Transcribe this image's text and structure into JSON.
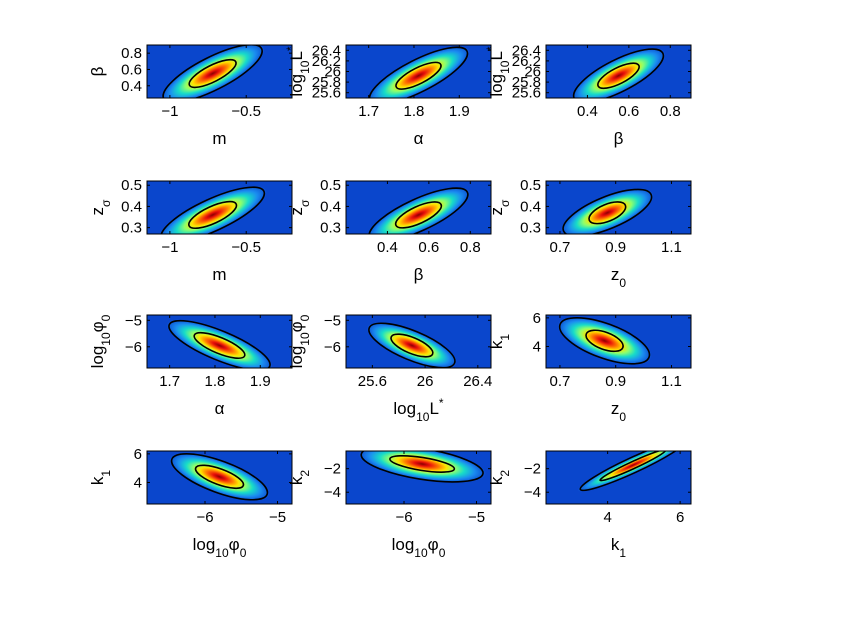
{
  "chart_data": [
    {
      "type": "heatmap",
      "xlabel": "m",
      "ylabel": "β",
      "xlim": [
        -1.15,
        -0.2
      ],
      "ylim": [
        0.25,
        0.9
      ],
      "xticks": [
        -1,
        -0.5
      ],
      "xtick_labels": [
        "−1",
        "−0.5"
      ],
      "yticks": [
        0.4,
        0.6,
        0.8
      ],
      "ytick_labels": [
        "0.4",
        "0.6",
        "0.8"
      ],
      "peak": [
        -0.72,
        0.55
      ],
      "ellipse_1sigma": {
        "rx": 0.17,
        "ry": 0.1,
        "tilt": 0.6
      },
      "ellipse_2sigma": {
        "rx": 0.36,
        "ry": 0.2,
        "tilt": 0.6
      }
    },
    {
      "type": "heatmap",
      "xlabel": "α",
      "ylabel_base": "log",
      "ylabel_sub": "10",
      "ylabel_tail": "L",
      "ylabel_sup": "*",
      "xlim": [
        1.65,
        1.97
      ],
      "ylim": [
        25.5,
        26.5
      ],
      "xticks": [
        1.7,
        1.8,
        1.9
      ],
      "xtick_labels": [
        "1.7",
        "1.8",
        "1.9"
      ],
      "yticks": [
        25.6,
        25.8,
        26,
        26.2,
        26.4
      ],
      "ytick_labels": [
        "25.6",
        "25.8",
        "26",
        "26.2",
        "26.4"
      ],
      "peak": [
        1.81,
        25.92
      ],
      "ellipse_1sigma": {
        "rx": 0.055,
        "ry": 0.15,
        "tilt": 0.6
      },
      "ellipse_2sigma": {
        "rx": 0.12,
        "ry": 0.3,
        "tilt": 0.6
      }
    },
    {
      "type": "heatmap",
      "xlabel": "β",
      "ylabel_base": "log",
      "ylabel_sub": "10",
      "ylabel_tail": "L",
      "ylabel_sup": "*",
      "xlim": [
        0.2,
        0.9
      ],
      "ylim": [
        25.5,
        26.5
      ],
      "xticks": [
        0.4,
        0.6,
        0.8
      ],
      "xtick_labels": [
        "0.4",
        "0.6",
        "0.8"
      ],
      "yticks": [
        25.6,
        25.8,
        26,
        26.2,
        26.4
      ],
      "ytick_labels": [
        "25.6",
        "25.8",
        "26",
        "26.2",
        "26.4"
      ],
      "peak": [
        0.55,
        25.92
      ],
      "ellipse_1sigma": {
        "rx": 0.11,
        "ry": 0.15,
        "tilt": 0.6
      },
      "ellipse_2sigma": {
        "rx": 0.24,
        "ry": 0.3,
        "tilt": 0.6
      }
    },
    {
      "type": "heatmap",
      "xlabel": "m",
      "ylabel_base": "z",
      "ylabel_sub": "σ",
      "xlim": [
        -1.15,
        -0.2
      ],
      "ylim": [
        0.27,
        0.52
      ],
      "xticks": [
        -1,
        -0.5
      ],
      "xtick_labels": [
        "−1",
        "−0.5"
      ],
      "yticks": [
        0.3,
        0.4,
        0.5
      ],
      "ytick_labels": [
        "0.3",
        "0.4",
        "0.5"
      ],
      "peak": [
        -0.72,
        0.36
      ],
      "ellipse_1sigma": {
        "rx": 0.17,
        "ry": 0.04,
        "tilt": 0.55
      },
      "ellipse_2sigma": {
        "rx": 0.37,
        "ry": 0.075,
        "tilt": 0.55
      }
    },
    {
      "type": "heatmap",
      "xlabel": "β",
      "ylabel_base": "z",
      "ylabel_sub": "σ",
      "xlim": [
        0.2,
        0.9
      ],
      "ylim": [
        0.27,
        0.52
      ],
      "xticks": [
        0.4,
        0.6,
        0.8
      ],
      "xtick_labels": [
        "0.4",
        "0.6",
        "0.8"
      ],
      "yticks": [
        0.3,
        0.4,
        0.5
      ],
      "ytick_labels": [
        "0.3",
        "0.4",
        "0.5"
      ],
      "peak": [
        0.55,
        0.36
      ],
      "ellipse_1sigma": {
        "rx": 0.12,
        "ry": 0.04,
        "tilt": 0.55
      },
      "ellipse_2sigma": {
        "rx": 0.26,
        "ry": 0.075,
        "tilt": 0.55
      }
    },
    {
      "type": "heatmap",
      "xlabel_base": "z",
      "xlabel_sub": "0",
      "ylabel_base": "z",
      "ylabel_sub": "σ",
      "xlim": [
        0.65,
        1.17
      ],
      "ylim": [
        0.27,
        0.52
      ],
      "xticks": [
        0.7,
        0.9,
        1.1
      ],
      "xtick_labels": [
        "0.7",
        "0.9",
        "1.1"
      ],
      "yticks": [
        0.3,
        0.4,
        0.5
      ],
      "ytick_labels": [
        "0.3",
        "0.4",
        "0.5"
      ],
      "peak": [
        0.87,
        0.37
      ],
      "ellipse_1sigma": {
        "rx": 0.07,
        "ry": 0.04,
        "tilt": 0.5
      },
      "ellipse_2sigma": {
        "rx": 0.17,
        "ry": 0.075,
        "tilt": 0.5
      }
    },
    {
      "type": "heatmap",
      "xlabel": "α",
      "ylabel_base": "log",
      "ylabel_sub": "10",
      "ylabel_tail": "φ",
      "ylabel_sub2": "0",
      "xlim": [
        1.65,
        1.97
      ],
      "ylim": [
        -6.8,
        -4.8
      ],
      "xticks": [
        1.7,
        1.8,
        1.9
      ],
      "xtick_labels": [
        "1.7",
        "1.8",
        "1.9"
      ],
      "yticks": [
        -6,
        -5
      ],
      "ytick_labels": [
        "−6",
        "−5"
      ],
      "peak": [
        1.81,
        -5.95
      ],
      "ellipse_1sigma": {
        "rx": 0.06,
        "ry": 0.3,
        "tilt": -0.5
      },
      "ellipse_2sigma": {
        "rx": 0.12,
        "ry": 0.55,
        "tilt": -0.5
      }
    },
    {
      "type": "heatmap",
      "xlabel_base": "log",
      "xlabel_sub": "10",
      "xlabel_tail": "L",
      "xlabel_sup": "*",
      "ylabel_base": "log",
      "ylabel_sub": "10",
      "ylabel_tail": "φ",
      "ylabel_sub2": "0",
      "xlim": [
        25.4,
        26.5
      ],
      "ylim": [
        -6.8,
        -4.8
      ],
      "xticks": [
        25.6,
        26,
        26.4
      ],
      "xtick_labels": [
        "25.6",
        "26",
        "26.4"
      ],
      "yticks": [
        -6,
        -5
      ],
      "ytick_labels": [
        "−6",
        "−5"
      ],
      "peak": [
        25.9,
        -5.95
      ],
      "ellipse_1sigma": {
        "rx": 0.17,
        "ry": 0.3,
        "tilt": -0.5
      },
      "ellipse_2sigma": {
        "rx": 0.35,
        "ry": 0.55,
        "tilt": -0.5
      }
    },
    {
      "type": "heatmap",
      "xlabel_base": "z",
      "xlabel_sub": "0",
      "ylabel_base": "k",
      "ylabel_sub": "1",
      "xlim": [
        0.65,
        1.17
      ],
      "ylim": [
        2.5,
        6.2
      ],
      "xticks": [
        0.7,
        0.9,
        1.1
      ],
      "xtick_labels": [
        "0.7",
        "0.9",
        "1.1"
      ],
      "yticks": [
        4,
        6
      ],
      "ytick_labels": [
        "4",
        "6"
      ],
      "peak": [
        0.86,
        4.4
      ],
      "ellipse_1sigma": {
        "rx": 0.07,
        "ry": 0.6,
        "tilt": -0.45
      },
      "ellipse_2sigma": {
        "rx": 0.17,
        "ry": 1.2,
        "tilt": -0.45
      }
    },
    {
      "type": "heatmap",
      "xlabel_base": "log",
      "xlabel_sub": "10",
      "xlabel_tail": "φ",
      "xlabel_sub2": "0",
      "ylabel_base": "k",
      "ylabel_sub": "1",
      "xlim": [
        -6.8,
        -4.8
      ],
      "ylim": [
        2.5,
        6.2
      ],
      "xticks": [
        -6,
        -5
      ],
      "xtick_labels": [
        "−6",
        "−5"
      ],
      "yticks": [
        4,
        6
      ],
      "ytick_labels": [
        "4",
        "6"
      ],
      "peak": [
        -5.8,
        4.4
      ],
      "ellipse_1sigma": {
        "rx": 0.35,
        "ry": 0.55,
        "tilt": -0.45
      },
      "ellipse_2sigma": {
        "rx": 0.7,
        "ry": 1.1,
        "tilt": -0.45
      }
    },
    {
      "type": "heatmap",
      "xlabel_base": "log",
      "xlabel_sub": "10",
      "xlabel_tail": "φ",
      "xlabel_sub2": "0",
      "ylabel_base": "k",
      "ylabel_sub": "2",
      "xlim": [
        -6.8,
        -4.8
      ],
      "ylim": [
        -5,
        -0.5
      ],
      "xticks": [
        -6,
        -5
      ],
      "xtick_labels": [
        "−6",
        "−5"
      ],
      "yticks": [
        -4,
        -2
      ],
      "ytick_labels": [
        "−4",
        "−2"
      ],
      "peak": [
        -5.75,
        -1.6
      ],
      "ellipse_1sigma": {
        "rx": 0.45,
        "ry": 0.55,
        "tilt": -0.2
      },
      "ellipse_2sigma": {
        "rx": 0.85,
        "ry": 1.3,
        "tilt": -0.2
      }
    },
    {
      "type": "heatmap",
      "xlabel_base": "k",
      "xlabel_sub": "1",
      "ylabel_base": "k",
      "ylabel_sub": "2",
      "xlim": [
        2.3,
        6.3
      ],
      "ylim": [
        -5,
        -0.5
      ],
      "xticks": [
        4,
        6
      ],
      "xtick_labels": [
        "4",
        "6"
      ],
      "yticks": [
        -4,
        -2
      ],
      "ytick_labels": [
        "−4",
        "−2"
      ],
      "peak": [
        4.7,
        -1.7
      ],
      "ellipse_1sigma": {
        "rx": 1.0,
        "ry": 0.3,
        "tilt": 0.55
      },
      "ellipse_2sigma": {
        "rx": 1.6,
        "ry": 0.65,
        "tilt": 0.55
      }
    }
  ]
}
